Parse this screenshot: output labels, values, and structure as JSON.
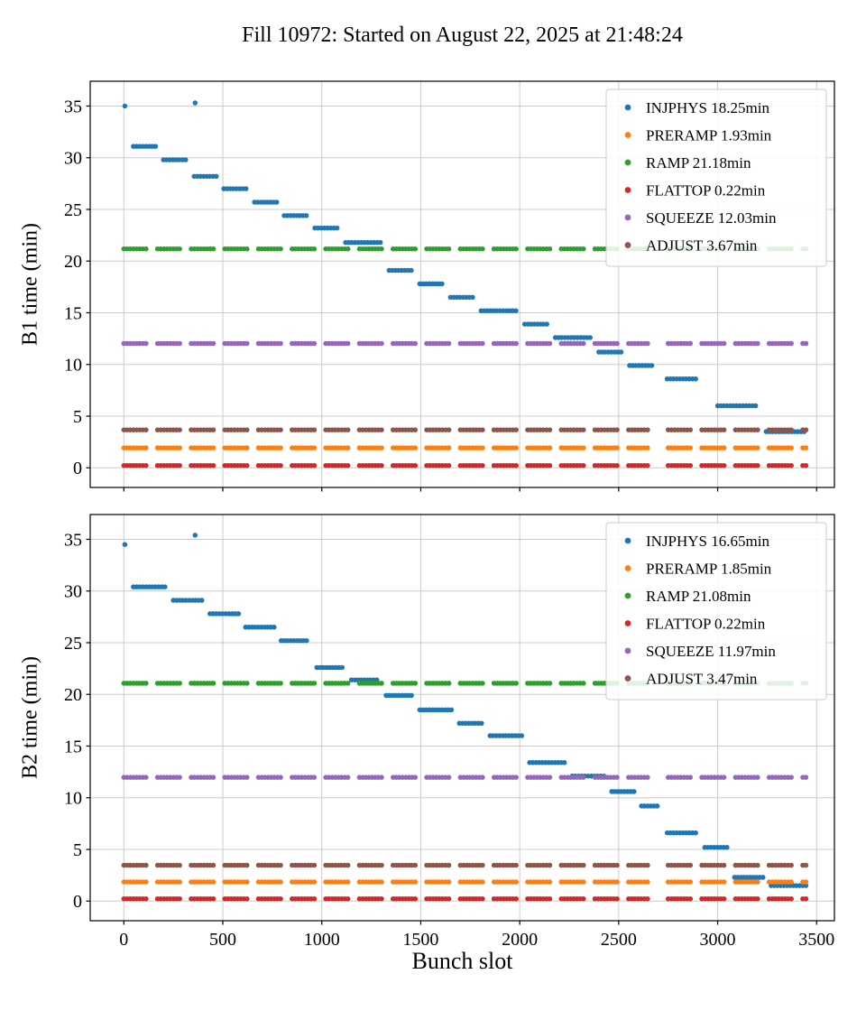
{
  "figure": {
    "title": "Fill 10972: Started on August 22, 2025 at 21:48:24",
    "xlabel": "Bunch slot",
    "background": "#ffffff",
    "grid_color": "#cccccc",
    "frame_color": "#000000"
  },
  "chart_data": [
    {
      "type": "scatter",
      "name": "b1",
      "ylabel": "B1 time (min)",
      "xlabel": "",
      "xlim": [
        -170,
        3590
      ],
      "ylim": [
        -1.9,
        37.4
      ],
      "xticks": [
        0,
        500,
        1000,
        1500,
        2000,
        2500,
        3000,
        3500
      ],
      "yticks": [
        0,
        5,
        10,
        15,
        20,
        25,
        30,
        35
      ],
      "show_xtick_labels": false,
      "grid": true,
      "legend_loc": "upper right",
      "hline_segments": [
        [
          0,
          125
        ],
        [
          170,
          295
        ],
        [
          340,
          465
        ],
        [
          510,
          635
        ],
        [
          680,
          805
        ],
        [
          850,
          975
        ],
        [
          1020,
          1145
        ],
        [
          1190,
          1315
        ],
        [
          1360,
          1485
        ],
        [
          1530,
          1655
        ],
        [
          1700,
          1825
        ],
        [
          1870,
          1995
        ],
        [
          2040,
          2165
        ],
        [
          2210,
          2335
        ],
        [
          2380,
          2505
        ],
        [
          2550,
          2660
        ],
        [
          2750,
          2875
        ],
        [
          2920,
          3045
        ],
        [
          3090,
          3215
        ],
        [
          3260,
          3385
        ],
        [
          3430,
          3450
        ]
      ],
      "series": [
        {
          "name": "INJPHYS",
          "legend": "INJPHYS 18.25min",
          "color": "#1f77b4",
          "kind": "steps",
          "points": [
            [
              5,
              35.0
            ],
            [
              360,
              35.3
            ]
          ],
          "steps": [
            [
              48,
              165,
              31.1
            ],
            [
              200,
              320,
              29.8
            ],
            [
              355,
              470,
              28.2
            ],
            [
              505,
              625,
              27.0
            ],
            [
              660,
              775,
              25.7
            ],
            [
              810,
              930,
              24.4
            ],
            [
              965,
              1085,
              23.2
            ],
            [
              1120,
              1300,
              21.8
            ],
            [
              1340,
              1460,
              19.1
            ],
            [
              1495,
              1615,
              17.8
            ],
            [
              1650,
              1770,
              16.5
            ],
            [
              1805,
              1990,
              15.2
            ],
            [
              2025,
              2145,
              13.9
            ],
            [
              2180,
              2360,
              12.6
            ],
            [
              2400,
              2520,
              11.2
            ],
            [
              2555,
              2675,
              9.9
            ],
            [
              2745,
              2895,
              8.6
            ],
            [
              3000,
              3205,
              6.0
            ],
            [
              3245,
              3450,
              3.5
            ]
          ]
        },
        {
          "name": "PRERAMP",
          "legend": "PRERAMP 1.93min",
          "color": "#ff7f0e",
          "kind": "hline",
          "y": 1.93
        },
        {
          "name": "RAMP",
          "legend": "RAMP 21.18min",
          "color": "#2ca02c",
          "kind": "hline",
          "y": 21.18
        },
        {
          "name": "FLATTOP",
          "legend": "FLATTOP 0.22min",
          "color": "#d62728",
          "kind": "hline",
          "y": 0.22
        },
        {
          "name": "SQUEEZE",
          "legend": "SQUEEZE 12.03min",
          "color": "#9467bd",
          "kind": "hline",
          "y": 12.03
        },
        {
          "name": "ADJUST",
          "legend": "ADJUST 3.67min",
          "color": "#8c564b",
          "kind": "hline",
          "y": 3.67
        }
      ]
    },
    {
      "type": "scatter",
      "name": "b2",
      "ylabel": "B2 time (min)",
      "xlabel": "Bunch slot",
      "xlim": [
        -170,
        3590
      ],
      "ylim": [
        -1.9,
        37.4
      ],
      "xticks": [
        0,
        500,
        1000,
        1500,
        2000,
        2500,
        3000,
        3500
      ],
      "yticks": [
        0,
        5,
        10,
        15,
        20,
        25,
        30,
        35
      ],
      "show_xtick_labels": true,
      "grid": true,
      "legend_loc": "upper right",
      "hline_segments": [
        [
          0,
          125
        ],
        [
          170,
          295
        ],
        [
          340,
          465
        ],
        [
          510,
          635
        ],
        [
          680,
          805
        ],
        [
          850,
          975
        ],
        [
          1020,
          1145
        ],
        [
          1190,
          1315
        ],
        [
          1360,
          1485
        ],
        [
          1530,
          1655
        ],
        [
          1700,
          1825
        ],
        [
          1870,
          1995
        ],
        [
          2040,
          2165
        ],
        [
          2210,
          2335
        ],
        [
          2380,
          2505
        ],
        [
          2550,
          2660
        ],
        [
          2750,
          2875
        ],
        [
          2920,
          3045
        ],
        [
          3090,
          3215
        ],
        [
          3260,
          3385
        ],
        [
          3430,
          3450
        ]
      ],
      "series": [
        {
          "name": "INJPHYS",
          "legend": "INJPHYS 16.65min",
          "color": "#1f77b4",
          "kind": "steps",
          "points": [
            [
              5,
              34.5
            ],
            [
              360,
              35.4
            ]
          ],
          "steps": [
            [
              48,
              215,
              30.4
            ],
            [
              250,
              400,
              29.1
            ],
            [
              435,
              580,
              27.8
            ],
            [
              615,
              760,
              26.5
            ],
            [
              795,
              935,
              25.2
            ],
            [
              975,
              1115,
              22.6
            ],
            [
              1150,
              1290,
              21.4
            ],
            [
              1325,
              1460,
              19.9
            ],
            [
              1495,
              1660,
              18.5
            ],
            [
              1695,
              1815,
              17.2
            ],
            [
              1850,
              2010,
              16.0
            ],
            [
              2050,
              2230,
              13.4
            ],
            [
              2265,
              2430,
              12.1
            ],
            [
              2465,
              2580,
              10.6
            ],
            [
              2615,
              2700,
              9.2
            ],
            [
              2745,
              2900,
              6.6
            ],
            [
              2935,
              3055,
              5.2
            ],
            [
              3085,
              3240,
              2.3
            ],
            [
              3270,
              3450,
              1.5
            ]
          ]
        },
        {
          "name": "PRERAMP",
          "legend": "PRERAMP 1.85min",
          "color": "#ff7f0e",
          "kind": "hline",
          "y": 1.85
        },
        {
          "name": "RAMP",
          "legend": "RAMP 21.08min",
          "color": "#2ca02c",
          "kind": "hline",
          "y": 21.08
        },
        {
          "name": "FLATTOP",
          "legend": "FLATTOP 0.22min",
          "color": "#d62728",
          "kind": "hline",
          "y": 0.22
        },
        {
          "name": "SQUEEZE",
          "legend": "SQUEEZE 11.97min",
          "color": "#9467bd",
          "kind": "hline",
          "y": 11.97
        },
        {
          "name": "ADJUST",
          "legend": "ADJUST 3.47min",
          "color": "#8c564b",
          "kind": "hline",
          "y": 3.47
        }
      ]
    }
  ]
}
